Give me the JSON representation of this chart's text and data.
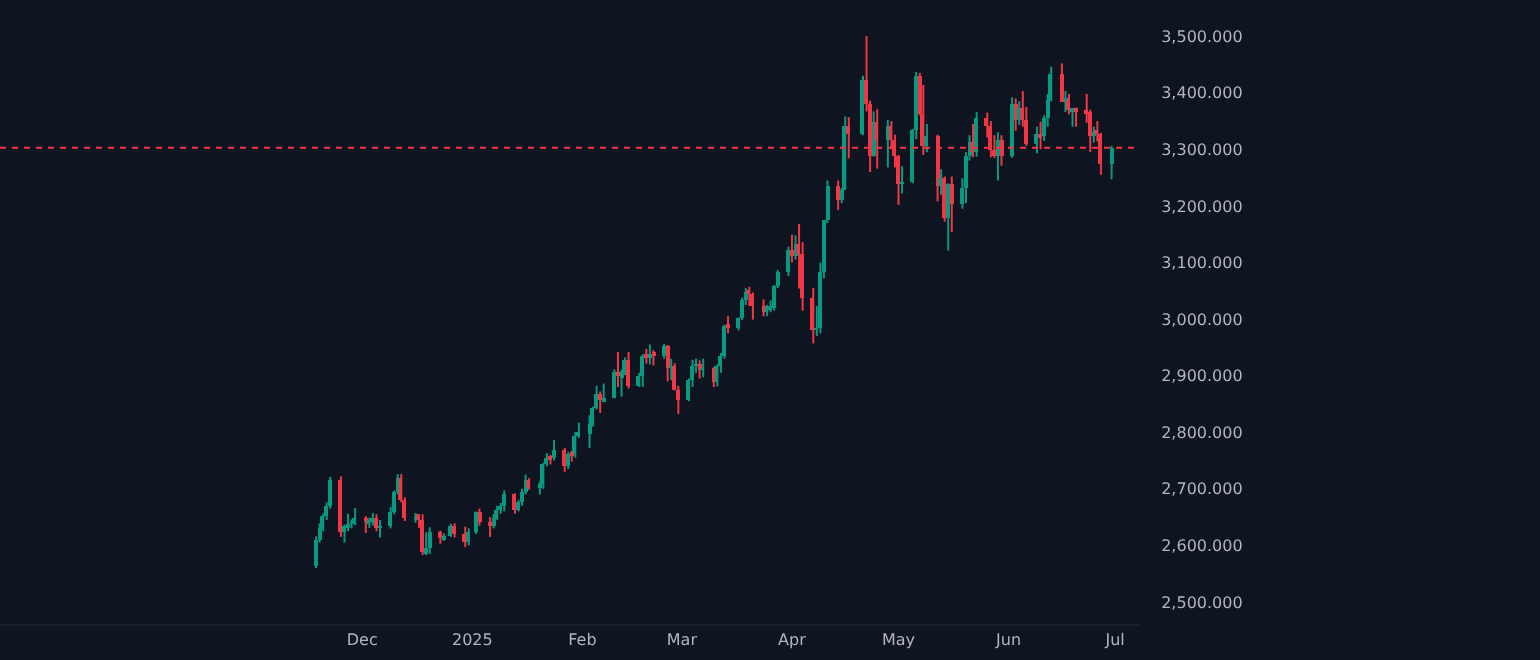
{
  "chart_data": {
    "type": "candlestick",
    "x": [
      "2024-11-18",
      "2024-11-19",
      "2024-11-20",
      "2024-11-21",
      "2024-11-22",
      "2024-11-25",
      "2024-11-26",
      "2024-11-27",
      "2024-11-28",
      "2024-11-29",
      "2024-12-02",
      "2024-12-03",
      "2024-12-04",
      "2024-12-05",
      "2024-12-06",
      "2024-12-09",
      "2024-12-10",
      "2024-12-11",
      "2024-12-12",
      "2024-12-13",
      "2024-12-16",
      "2024-12-17",
      "2024-12-18",
      "2024-12-19",
      "2024-12-20",
      "2024-12-23",
      "2024-12-24",
      "2024-12-26",
      "2024-12-27",
      "2024-12-30",
      "2024-12-31",
      "2025-01-02",
      "2025-01-03",
      "2025-01-06",
      "2025-01-07",
      "2025-01-08",
      "2025-01-09",
      "2025-01-10",
      "2025-01-13",
      "2025-01-14",
      "2025-01-15",
      "2025-01-16",
      "2025-01-17",
      "2025-01-20",
      "2025-01-21",
      "2025-01-22",
      "2025-01-23",
      "2025-01-24",
      "2025-01-27",
      "2025-01-28",
      "2025-01-29",
      "2025-01-30",
      "2025-01-31",
      "2025-02-03",
      "2025-02-04",
      "2025-02-05",
      "2025-02-06",
      "2025-02-07",
      "2025-02-10",
      "2025-02-11",
      "2025-02-12",
      "2025-02-13",
      "2025-02-14",
      "2025-02-17",
      "2025-02-18",
      "2025-02-19",
      "2025-02-20",
      "2025-02-21",
      "2025-02-24",
      "2025-02-25",
      "2025-02-26",
      "2025-02-27",
      "2025-02-28",
      "2025-03-03",
      "2025-03-04",
      "2025-03-05",
      "2025-03-06",
      "2025-03-07",
      "2025-03-10",
      "2025-03-11",
      "2025-03-12",
      "2025-03-13",
      "2025-03-14",
      "2025-03-17",
      "2025-03-18",
      "2025-03-19",
      "2025-03-20",
      "2025-03-21",
      "2025-03-24",
      "2025-03-25",
      "2025-03-26",
      "2025-03-27",
      "2025-03-28",
      "2025-03-31",
      "2025-04-01",
      "2025-04-02",
      "2025-04-03",
      "2025-04-04",
      "2025-04-07",
      "2025-04-08",
      "2025-04-09",
      "2025-04-10",
      "2025-04-11",
      "2025-04-14",
      "2025-04-15",
      "2025-04-16",
      "2025-04-17",
      "2025-04-21",
      "2025-04-22",
      "2025-04-23",
      "2025-04-24",
      "2025-04-25",
      "2025-04-28",
      "2025-04-29",
      "2025-04-30",
      "2025-05-01",
      "2025-05-02",
      "2025-05-05",
      "2025-05-06",
      "2025-05-07",
      "2025-05-08",
      "2025-05-09",
      "2025-05-12",
      "2025-05-13",
      "2025-05-14",
      "2025-05-15",
      "2025-05-16",
      "2025-05-19",
      "2025-05-20",
      "2025-05-21",
      "2025-05-22",
      "2025-05-23",
      "2025-05-26",
      "2025-05-27",
      "2025-05-28",
      "2025-05-29",
      "2025-05-30",
      "2025-06-02",
      "2025-06-03",
      "2025-06-04",
      "2025-06-05",
      "2025-06-06",
      "2025-06-09",
      "2025-06-10",
      "2025-06-11",
      "2025-06-12",
      "2025-06-13",
      "2025-06-16",
      "2025-06-17",
      "2025-06-18",
      "2025-06-19",
      "2025-06-20",
      "2025-06-23",
      "2025-06-24",
      "2025-06-25",
      "2025-06-26",
      "2025-06-27",
      "2025-06-30"
    ],
    "ohlc": [
      [
        2563,
        2616,
        2560,
        2611
      ],
      [
        2611,
        2639,
        2605,
        2631
      ],
      [
        2631,
        2656,
        2625,
        2651
      ],
      [
        2651,
        2676,
        2645,
        2670
      ],
      [
        2670,
        2721,
        2665,
        2715
      ],
      [
        2715,
        2722,
        2615,
        2625
      ],
      [
        2625,
        2637,
        2605,
        2633
      ],
      [
        2633,
        2656,
        2625,
        2639
      ],
      [
        2639,
        2646,
        2630,
        2640
      ],
      [
        2640,
        2666,
        2636,
        2650
      ],
      [
        2650,
        2652,
        2622,
        2640
      ],
      [
        2640,
        2649,
        2631,
        2643
      ],
      [
        2643,
        2657,
        2635,
        2650
      ],
      [
        2650,
        2655,
        2625,
        2632
      ],
      [
        2632,
        2645,
        2614,
        2633
      ],
      [
        2633,
        2668,
        2630,
        2660
      ],
      [
        2660,
        2697,
        2655,
        2694
      ],
      [
        2694,
        2726,
        2690,
        2718
      ],
      [
        2718,
        2726,
        2676,
        2681
      ],
      [
        2681,
        2685,
        2643,
        2648
      ],
      [
        2648,
        2657,
        2640,
        2652
      ],
      [
        2652,
        2655,
        2631,
        2646
      ],
      [
        2646,
        2655,
        2583,
        2587
      ],
      [
        2587,
        2623,
        2583,
        2594
      ],
      [
        2594,
        2632,
        2585,
        2622
      ],
      [
        2622,
        2626,
        2603,
        2612
      ],
      [
        2612,
        2621,
        2608,
        2618
      ],
      [
        2618,
        2638,
        2615,
        2634
      ],
      [
        2634,
        2639,
        2614,
        2621
      ],
      [
        2621,
        2633,
        2597,
        2606
      ],
      [
        2606,
        2630,
        2600,
        2624
      ],
      [
        2624,
        2660,
        2620,
        2658
      ],
      [
        2658,
        2665,
        2635,
        2640
      ],
      [
        2640,
        2650,
        2615,
        2636
      ],
      [
        2636,
        2655,
        2630,
        2648
      ],
      [
        2648,
        2670,
        2645,
        2662
      ],
      [
        2662,
        2675,
        2656,
        2670
      ],
      [
        2670,
        2697,
        2660,
        2690
      ],
      [
        2690,
        2692,
        2656,
        2663
      ],
      [
        2663,
        2680,
        2660,
        2677
      ],
      [
        2677,
        2700,
        2670,
        2696
      ],
      [
        2696,
        2725,
        2690,
        2715
      ],
      [
        2715,
        2719,
        2698,
        2703
      ],
      [
        2703,
        2713,
        2690,
        2708
      ],
      [
        2708,
        2746,
        2700,
        2745
      ],
      [
        2745,
        2763,
        2740,
        2755
      ],
      [
        2755,
        2760,
        2743,
        2753
      ],
      [
        2753,
        2786,
        2750,
        2770
      ],
      [
        2770,
        2772,
        2730,
        2740
      ],
      [
        2740,
        2765,
        2735,
        2763
      ],
      [
        2763,
        2767,
        2748,
        2760
      ],
      [
        2760,
        2800,
        2755,
        2794
      ],
      [
        2794,
        2817,
        2790,
        2798
      ],
      [
        2798,
        2830,
        2772,
        2815
      ],
      [
        2815,
        2845,
        2810,
        2842
      ],
      [
        2842,
        2882,
        2840,
        2866
      ],
      [
        2866,
        2872,
        2834,
        2856
      ],
      [
        2856,
        2886,
        2853,
        2861
      ],
      [
        2861,
        2911,
        2860,
        2908
      ],
      [
        2908,
        2942,
        2880,
        2898
      ],
      [
        2898,
        2910,
        2863,
        2905
      ],
      [
        2905,
        2932,
        2901,
        2928
      ],
      [
        2928,
        2942,
        2877,
        2882
      ],
      [
        2882,
        2905,
        2880,
        2898
      ],
      [
        2898,
        2938,
        2880,
        2935
      ],
      [
        2935,
        2947,
        2921,
        2933
      ],
      [
        2933,
        2955,
        2920,
        2939
      ],
      [
        2939,
        2945,
        2918,
        2936
      ],
      [
        2936,
        2956,
        2930,
        2951
      ],
      [
        2951,
        2954,
        2890,
        2915
      ],
      [
        2915,
        2930,
        2892,
        2916
      ],
      [
        2916,
        2922,
        2874,
        2876
      ],
      [
        2876,
        2882,
        2832,
        2858
      ],
      [
        2858,
        2895,
        2855,
        2893
      ],
      [
        2893,
        2928,
        2880,
        2918
      ],
      [
        2918,
        2930,
        2905,
        2920
      ],
      [
        2920,
        2927,
        2895,
        2910
      ],
      [
        2910,
        2930,
        2897,
        2912
      ],
      [
        2912,
        2915,
        2880,
        2889
      ],
      [
        2889,
        2920,
        2881,
        2916
      ],
      [
        2916,
        2940,
        2905,
        2934
      ],
      [
        2934,
        2990,
        2930,
        2988
      ],
      [
        2988,
        3005,
        2975,
        2984
      ],
      [
        2984,
        3003,
        2980,
        3001
      ],
      [
        3001,
        3038,
        2998,
        3035
      ],
      [
        3035,
        3055,
        3025,
        3048
      ],
      [
        3048,
        3057,
        3023,
        3044
      ],
      [
        3044,
        3047,
        2999,
        3023
      ],
      [
        3023,
        3035,
        3005,
        3011
      ],
      [
        3011,
        3025,
        3005,
        3019
      ],
      [
        3019,
        3033,
        3012,
        3021
      ],
      [
        3021,
        3060,
        3015,
        3057
      ],
      [
        3057,
        3087,
        3055,
        3084
      ],
      [
        3084,
        3128,
        3076,
        3123
      ],
      [
        3123,
        3149,
        3100,
        3113
      ],
      [
        3113,
        3148,
        3105,
        3134
      ],
      [
        3134,
        3168,
        3054,
        3114
      ],
      [
        3114,
        3136,
        3015,
        3037
      ],
      [
        3037,
        3055,
        2957,
        2982
      ],
      [
        2982,
        3023,
        2970,
        2984
      ],
      [
        2984,
        3100,
        2975,
        3082
      ],
      [
        3082,
        3175,
        3072,
        3175
      ],
      [
        3175,
        3245,
        3170,
        3237
      ],
      [
        3237,
        3245,
        3193,
        3210
      ],
      [
        3210,
        3232,
        3205,
        3229
      ],
      [
        3229,
        3358,
        3228,
        3343
      ],
      [
        3343,
        3357,
        3284,
        3327
      ],
      [
        3327,
        3430,
        3325,
        3424
      ],
      [
        3424,
        3500,
        3367,
        3381
      ],
      [
        3381,
        3386,
        3260,
        3288
      ],
      [
        3288,
        3367,
        3287,
        3349
      ],
      [
        3349,
        3371,
        3266,
        3318
      ],
      [
        3318,
        3352,
        3268,
        3343
      ],
      [
        3343,
        3350,
        3300,
        3317
      ],
      [
        3317,
        3326,
        3268,
        3288
      ],
      [
        3288,
        3290,
        3202,
        3239
      ],
      [
        3239,
        3270,
        3222,
        3241
      ],
      [
        3241,
        3336,
        3240,
        3333
      ],
      [
        3333,
        3437,
        3318,
        3431
      ],
      [
        3431,
        3435,
        3360,
        3363
      ],
      [
        3363,
        3414,
        3290,
        3306
      ],
      [
        3306,
        3345,
        3295,
        3325
      ],
      [
        3325,
        3326,
        3208,
        3235
      ],
      [
        3235,
        3265,
        3220,
        3250
      ],
      [
        3250,
        3252,
        3172,
        3177
      ],
      [
        3177,
        3240,
        3121,
        3240
      ],
      [
        3240,
        3252,
        3154,
        3202
      ],
      [
        3202,
        3249,
        3195,
        3230
      ],
      [
        3230,
        3295,
        3205,
        3290
      ],
      [
        3290,
        3325,
        3280,
        3314
      ],
      [
        3314,
        3345,
        3286,
        3295
      ],
      [
        3295,
        3366,
        3287,
        3357
      ],
      [
        3357,
        3365,
        3321,
        3342
      ],
      [
        3342,
        3350,
        3286,
        3300
      ],
      [
        3300,
        3325,
        3285,
        3288
      ],
      [
        3288,
        3330,
        3245,
        3318
      ],
      [
        3318,
        3325,
        3271,
        3289
      ],
      [
        3289,
        3392,
        3285,
        3380
      ],
      [
        3380,
        3390,
        3333,
        3353
      ],
      [
        3353,
        3385,
        3343,
        3373
      ],
      [
        3373,
        3403,
        3340,
        3353
      ],
      [
        3353,
        3375,
        3306,
        3310
      ],
      [
        3310,
        3340,
        3293,
        3326
      ],
      [
        3326,
        3349,
        3300,
        3322
      ],
      [
        3322,
        3360,
        3315,
        3354
      ],
      [
        3354,
        3398,
        3340,
        3387
      ],
      [
        3387,
        3446,
        3385,
        3432
      ],
      [
        3432,
        3452,
        3385,
        3385
      ],
      [
        3385,
        3403,
        3366,
        3388
      ],
      [
        3388,
        3398,
        3362,
        3369
      ],
      [
        3369,
        3372,
        3340,
        3370
      ],
      [
        3370,
        3374,
        3340,
        3368
      ],
      [
        3368,
        3398,
        3347,
        3366
      ],
      [
        3366,
        3370,
        3295,
        3323
      ],
      [
        3323,
        3340,
        3312,
        3332
      ],
      [
        3332,
        3350,
        3314,
        3327
      ],
      [
        3327,
        3329,
        3255,
        3274
      ],
      [
        3274,
        3306,
        3247,
        3303
      ]
    ],
    "xlim": [
      "2024-08-21",
      "2025-07-08"
    ],
    "xticks": [
      {
        "value": "2024-12-01",
        "label": "Dec"
      },
      {
        "value": "2025-01-01",
        "label": "2025"
      },
      {
        "value": "2025-02-01",
        "label": "Feb"
      },
      {
        "value": "2025-03-01",
        "label": "Mar"
      },
      {
        "value": "2025-04-01",
        "label": "Apr"
      },
      {
        "value": "2025-05-01",
        "label": "May"
      },
      {
        "value": "2025-06-01",
        "label": "Jun"
      },
      {
        "value": "2025-07-01",
        "label": "Jul"
      }
    ],
    "ylim": [
      2461,
      3564
    ],
    "yticks": [
      {
        "value": 2500,
        "label": "2,500.000"
      },
      {
        "value": 2600,
        "label": "2,600.000"
      },
      {
        "value": 2700,
        "label": "2,700.000"
      },
      {
        "value": 2800,
        "label": "2,800.000"
      },
      {
        "value": 2900,
        "label": "2,900.000"
      },
      {
        "value": 3000,
        "label": "3,000.000"
      },
      {
        "value": 3100,
        "label": "3,100.000"
      },
      {
        "value": 3200,
        "label": "3,200.000"
      },
      {
        "value": 3300,
        "label": "3,300.000"
      },
      {
        "value": 3400,
        "label": "3,400.000"
      },
      {
        "value": 3500,
        "label": "3,500.000"
      }
    ],
    "ref_lines": [
      {
        "axis": "y",
        "value": 3303,
        "color": "#f23645",
        "line_style": "dotted"
      }
    ],
    "grid": false
  }
}
